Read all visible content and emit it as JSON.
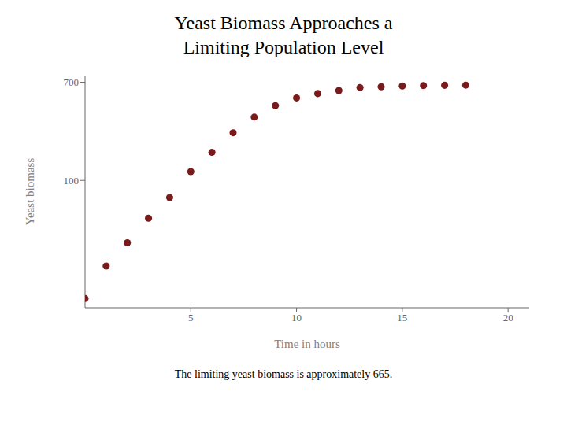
{
  "chart_data": {
    "type": "scatter",
    "title": "Yeast Biomass Approaches a\nLimiting Population Level",
    "xlabel": "Time in  hours",
    "ylabel": "Yeast biomass",
    "x": [
      0,
      1,
      2,
      3,
      4,
      5,
      6,
      7,
      8,
      9,
      10,
      11,
      12,
      13,
      14,
      15,
      16,
      17,
      18
    ],
    "values": [
      9.6,
      18.3,
      29.0,
      47.2,
      71.1,
      119.1,
      174.6,
      257.3,
      350.7,
      441.0,
      513.3,
      559.7,
      594.8,
      629.4,
      640.8,
      651.1,
      655.9,
      659.6,
      661.8
    ],
    "color": "#7b1a1a",
    "xlim": [
      0,
      21
    ],
    "xticks": [
      5,
      10,
      15,
      20
    ],
    "ylim": [
      8,
      800
    ],
    "yticks": [
      100,
      700
    ],
    "log": "y",
    "grid": false,
    "annotations": [
      "The limiting yeast biomass is approximately 665."
    ]
  }
}
